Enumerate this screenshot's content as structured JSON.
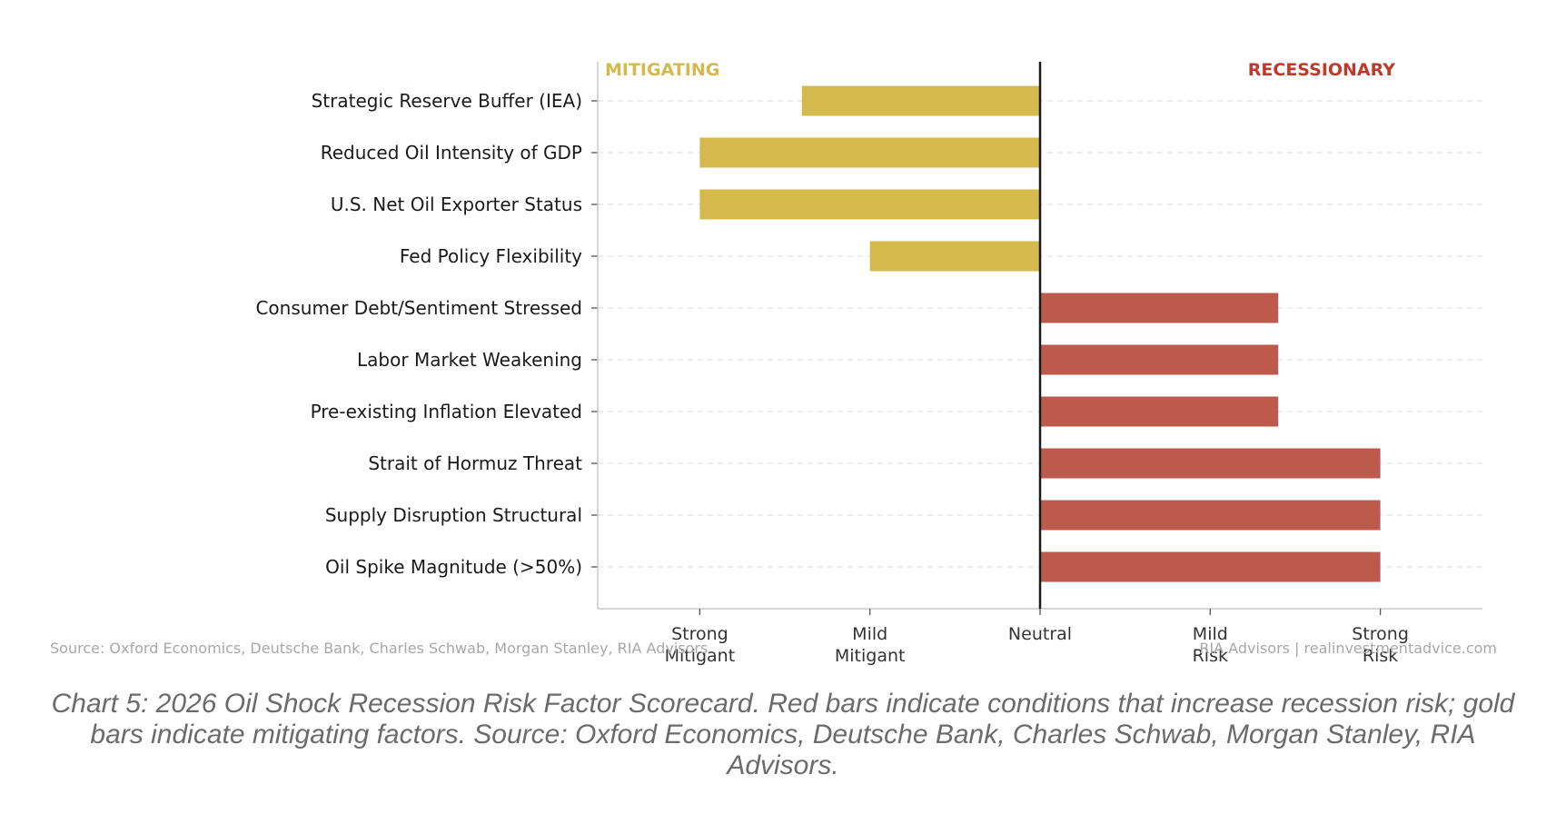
{
  "chart_data": {
    "type": "bar",
    "orientation": "horizontal",
    "categories": [
      "Strategic Reserve Buffer (IEA)",
      "Reduced Oil Intensity of GDP",
      "U.S. Net Oil Exporter Status",
      "Fed Policy Flexibility",
      "Consumer Debt/Sentiment Stressed",
      "Labor Market Weakening",
      "Pre-existing Inflation Elevated",
      "Strait of Hormuz Threat",
      "Supply Disruption Structural",
      "Oil Spike Magnitude (>50%)"
    ],
    "values": [
      -1.4,
      -2,
      -2,
      -1,
      1.4,
      1.4,
      1.4,
      2,
      2,
      2
    ],
    "xlim": [
      -2.6,
      2.6
    ],
    "xticks": [
      -2,
      -1,
      0,
      1,
      2
    ],
    "xtick_labels": [
      [
        "Strong",
        "Mitigant"
      ],
      [
        "Mild",
        "Mitigant"
      ],
      [
        "Neutral"
      ],
      [
        "Mild",
        "Risk"
      ],
      [
        "Strong",
        "Risk"
      ]
    ],
    "left_annotation": "MITIGATING",
    "right_annotation": "RECESSIONARY",
    "grid": "horizontal dashed",
    "colors": {
      "mitigating": "#d4b94c",
      "recessionary": "#bc5a4e",
      "left_annotation": "#d4b94c",
      "right_annotation": "#c0392b",
      "zero_line": "#1a1a1a"
    }
  },
  "footer": {
    "source_left": "Source: Oxford Economics, Deutsche Bank, Charles Schwab, Morgan Stanley, RIA Advisors",
    "source_right": "RIA Advisors | realinvestmentadvice.com"
  },
  "caption": "Chart 5: 2026 Oil Shock Recession Risk Factor Scorecard. Red bars indicate conditions that increase recession risk; gold bars indicate mitigating factors. Source: Oxford Economics, Deutsche Bank, Charles Schwab, Morgan Stanley, RIA Advisors."
}
